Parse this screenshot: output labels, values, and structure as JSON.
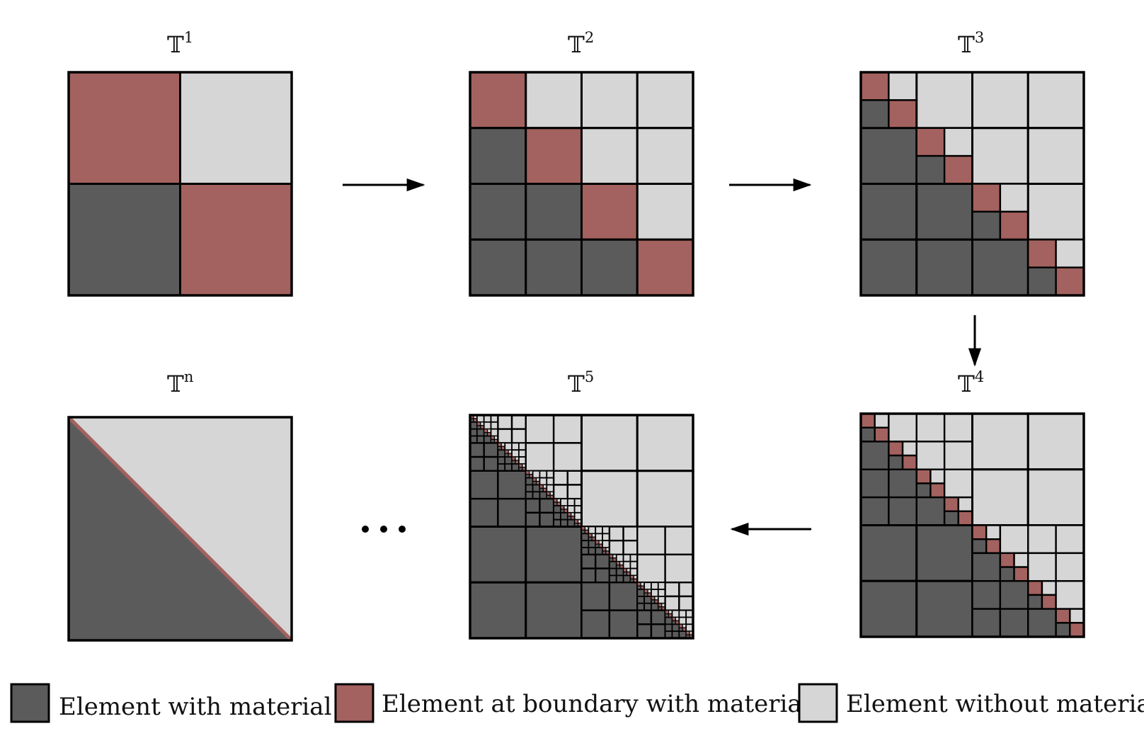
{
  "colors": {
    "material": "#5b5b5b",
    "boundary": "#a3625f",
    "empty": "#d6d6d6",
    "stroke": "#000000"
  },
  "meshes": [
    {
      "label": "𝕋",
      "sup": "1",
      "level": 1
    },
    {
      "label": "𝕋",
      "sup": "2",
      "level": 2
    },
    {
      "label": "𝕋",
      "sup": "3",
      "level": 3
    },
    {
      "label": "𝕋",
      "sup": "4",
      "level": 4
    },
    {
      "label": "𝕋",
      "sup": "5",
      "level": 5
    },
    {
      "label": "𝕋",
      "sup": "n",
      "level": "n"
    }
  ],
  "legend": [
    {
      "label": "Element with material",
      "color": "material"
    },
    {
      "label": "Element at boundary with material",
      "color": "boundary"
    },
    {
      "label": "Element without material",
      "color": "empty"
    }
  ]
}
